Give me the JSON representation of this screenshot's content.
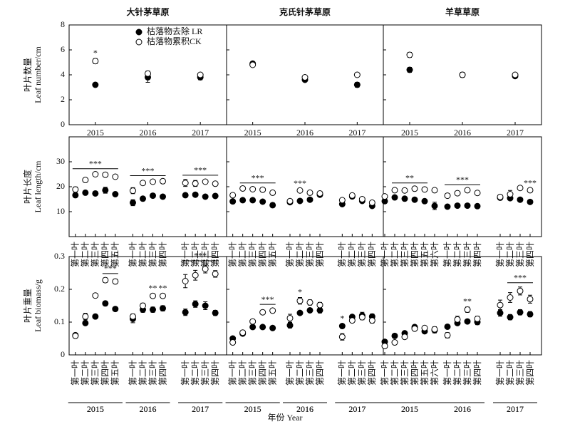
{
  "figure": {
    "xlabel": "年份 Year"
  },
  "chart_data": [
    {
      "type": "scatter",
      "title": "大针茅草原",
      "ylabel": [
        "叶片数量",
        "Leaf number/cm"
      ],
      "categories": [
        "2015",
        "2016",
        "2017"
      ],
      "ylim": [
        0,
        8
      ],
      "yticks": [
        0,
        2,
        4,
        6,
        8
      ],
      "series": [
        {
          "name": "枯落物去除 LR",
          "fill": "#000",
          "values": [
            3.2,
            3.8,
            3.8
          ],
          "errors": [
            0.1,
            0.4,
            0.2
          ]
        },
        {
          "name": "枯落物累积CK",
          "fill": "#fff",
          "values": [
            5.1,
            4.1,
            4.0
          ],
          "errors": [
            0.2,
            0.2,
            0.1
          ]
        }
      ],
      "annotations": [
        {
          "text": "*",
          "span": [
            0,
            0
          ]
        }
      ]
    },
    {
      "type": "scatter",
      "title": "克氏针茅草原",
      "categories": [
        "2015",
        "2016",
        "2017"
      ],
      "ylim": [
        0,
        8
      ],
      "yticks": [
        0,
        2,
        4,
        6,
        8
      ],
      "series": [
        {
          "fill": "#000",
          "values": [
            4.9,
            3.6,
            3.2
          ],
          "errors": [
            0.1,
            0.1,
            0.2
          ]
        },
        {
          "fill": "#fff",
          "values": [
            4.8,
            3.8,
            4.0
          ],
          "errors": [
            0.1,
            0.1,
            0.1
          ]
        }
      ],
      "annotations": []
    },
    {
      "type": "scatter",
      "title": "羊草草原",
      "categories": [
        "2015",
        "2016",
        "2017"
      ],
      "ylim": [
        0,
        8
      ],
      "yticks": [
        0,
        2,
        4,
        6,
        8
      ],
      "series": [
        {
          "fill": "#000",
          "values": [
            4.4,
            4.0,
            3.9
          ],
          "errors": [
            0.2,
            0.2,
            0.1
          ]
        },
        {
          "fill": "#fff",
          "values": [
            5.6,
            4.0,
            4.0
          ],
          "errors": [
            0.2,
            0.1,
            0.1
          ]
        }
      ],
      "annotations": []
    },
    {
      "type": "scatter",
      "ylabel": [
        "叶片长度",
        "Leaf length/cm"
      ],
      "ylim": [
        0,
        40
      ],
      "yticks": [
        10,
        20,
        30
      ],
      "groups": [
        {
          "label": "2015",
          "categories": [
            "第一叶",
            "第二叶",
            "第三叶",
            "第四叶",
            "第五叶"
          ]
        },
        {
          "label": "2016",
          "categories": [
            "第一叶",
            "第二叶",
            "第三叶",
            "第四叶"
          ]
        },
        {
          "label": "2017",
          "categories": [
            "第一叶",
            "第二叶",
            "第三叶",
            "第四叶"
          ]
        }
      ],
      "series": [
        {
          "fill": "#000",
          "values": [
            16.6,
            17.6,
            17.3,
            18.6,
            17.0,
            13.6,
            15.2,
            16.4,
            16.0,
            16.6,
            16.8,
            16.0,
            16.3
          ],
          "errors": [
            0.8,
            0.6,
            0.6,
            1.2,
            0.5,
            1.2,
            0.8,
            0.8,
            0.6,
            0.6,
            0.6,
            0.8,
            0.8
          ]
        },
        {
          "fill": "#fff",
          "values": [
            18.9,
            22.7,
            25.0,
            24.8,
            24.0,
            18.4,
            21.5,
            22.0,
            22.2,
            21.5,
            21.3,
            22.0,
            21.2
          ],
          "errors": [
            1.0,
            0.5,
            0.5,
            0.5,
            0.6,
            1.2,
            0.6,
            0.5,
            0.5,
            1.4,
            1.2,
            0.6,
            0.6
          ]
        }
      ],
      "annotations": [
        {
          "text": "***",
          "span": [
            0,
            4
          ]
        },
        {
          "text": "***",
          "span": [
            5,
            8
          ]
        },
        {
          "text": "***",
          "span": [
            9,
            12
          ]
        }
      ]
    },
    {
      "type": "scatter",
      "ylim": [
        0,
        40
      ],
      "yticks": [
        10,
        20,
        30
      ],
      "groups": [
        {
          "label": "2015",
          "categories": [
            "第一叶",
            "第二叶",
            "第三叶",
            "第四叶",
            "第五叶"
          ]
        },
        {
          "label": "2016",
          "categories": [
            "第一叶",
            "第二叶",
            "第三叶",
            "第四叶"
          ]
        },
        {
          "label": "2017",
          "categories": [
            "第一叶",
            "第二叶",
            "第三叶",
            "第四叶"
          ]
        }
      ],
      "series": [
        {
          "fill": "#000",
          "values": [
            14.1,
            14.6,
            14.6,
            14.0,
            12.6,
            13.8,
            14.3,
            14.8,
            16.8,
            13.0,
            16.1,
            14.3,
            12.3
          ],
          "errors": [
            0.6,
            0.5,
            0.5,
            0.6,
            0.9,
            0.8,
            0.5,
            0.5,
            0.6,
            0.6,
            0.5,
            0.6,
            0.6
          ]
        },
        {
          "fill": "#fff",
          "values": [
            16.6,
            19.3,
            19.0,
            18.8,
            17.6,
            14.2,
            18.5,
            17.6,
            17.3,
            14.6,
            16.5,
            15.0,
            13.6
          ],
          "errors": [
            0.8,
            0.5,
            0.6,
            0.5,
            0.6,
            0.8,
            0.6,
            0.5,
            0.5,
            0.6,
            0.5,
            0.6,
            0.6
          ]
        }
      ],
      "annotations": [
        {
          "text": "***",
          "span": [
            1,
            4
          ]
        },
        {
          "text": "***",
          "span": [
            6,
            6
          ]
        }
      ]
    },
    {
      "type": "scatter",
      "ylim": [
        0,
        40
      ],
      "yticks": [
        10,
        20,
        30
      ],
      "groups": [
        {
          "label": "2015",
          "categories": [
            "第一叶",
            "第二叶",
            "第三叶",
            "第四叶",
            "第五叶",
            "第六叶"
          ]
        },
        {
          "label": "2016",
          "categories": [
            "第一叶",
            "第二叶",
            "第三叶",
            "第四叶"
          ]
        },
        {
          "label": "2017",
          "categories": [
            "第一叶",
            "第二叶",
            "第三叶",
            "第四叶"
          ]
        }
      ],
      "series": [
        {
          "fill": "#000",
          "values": [
            14.2,
            15.7,
            15.2,
            14.8,
            14.2,
            12.3,
            12.0,
            12.4,
            12.4,
            12.2,
            15.6,
            15.4,
            14.8,
            13.9
          ],
          "errors": [
            0.8,
            0.5,
            0.8,
            0.6,
            0.6,
            1.5,
            0.5,
            0.5,
            0.5,
            0.5,
            0.8,
            0.8,
            0.6,
            0.6
          ]
        },
        {
          "fill": "#fff",
          "values": [
            16.1,
            18.6,
            18.5,
            19.2,
            18.9,
            18.6,
            16.4,
            17.4,
            18.6,
            17.5,
            15.9,
            17.0,
            19.5,
            18.6
          ],
          "errors": [
            0.6,
            0.5,
            0.5,
            0.6,
            0.6,
            0.5,
            0.5,
            0.6,
            0.5,
            0.5,
            0.8,
            1.5,
            0.6,
            0.6
          ]
        }
      ],
      "annotations": [
        {
          "text": "**",
          "span": [
            1,
            4
          ]
        },
        {
          "text": "***",
          "span": [
            6,
            9
          ]
        },
        {
          "text": "***",
          "span": [
            13,
            13
          ]
        }
      ]
    },
    {
      "type": "scatter",
      "ylabel": [
        "叶片重量",
        "Leaf biomass/g"
      ],
      "ylim": [
        0,
        0.3
      ],
      "yticks": [
        0,
        0.1,
        0.2,
        0.3
      ],
      "groups": [
        {
          "label": "2015",
          "categories": [
            "第一叶",
            "第二叶",
            "第三叶",
            "第四叶",
            "第五叶"
          ]
        },
        {
          "label": "2016",
          "categories": [
            "第一叶",
            "第二叶",
            "第三叶",
            "第四叶"
          ]
        },
        {
          "label": "2017",
          "categories": [
            "第一叶",
            "第二叶",
            "第三叶",
            "第四叶"
          ]
        }
      ],
      "series": [
        {
          "fill": "#000",
          "values": [
            0.06,
            0.097,
            0.117,
            0.157,
            0.14,
            0.11,
            0.138,
            0.138,
            0.142,
            0.13,
            0.155,
            0.15,
            0.128
          ],
          "errors": [
            0.005,
            0.006,
            0.006,
            0.007,
            0.004,
            0.012,
            0.008,
            0.008,
            0.008,
            0.01,
            0.01,
            0.012,
            0.008
          ]
        },
        {
          "fill": "#fff",
          "values": [
            0.058,
            0.117,
            0.181,
            0.228,
            0.224,
            0.117,
            0.15,
            0.18,
            0.18,
            0.225,
            0.243,
            0.262,
            0.247
          ],
          "errors": [
            0.006,
            0.01,
            0.006,
            0.007,
            0.007,
            0.008,
            0.008,
            0.006,
            0.006,
            0.02,
            0.015,
            0.012,
            0.01
          ]
        }
      ],
      "annotations": [
        {
          "text": "***",
          "span": [
            3,
            4
          ]
        },
        {
          "text": "**",
          "span": [
            7,
            7
          ]
        },
        {
          "text": "**",
          "span": [
            8,
            8
          ]
        },
        {
          "text": "***",
          "span": [
            9,
            12
          ]
        }
      ]
    },
    {
      "type": "scatter",
      "ylim": [
        0,
        0.3
      ],
      "yticks": [
        0,
        0.1,
        0.2,
        0.3
      ],
      "groups": [
        {
          "label": "2015",
          "categories": [
            "第一叶",
            "第二叶",
            "第三叶",
            "第四叶",
            "第五叶"
          ]
        },
        {
          "label": "2016",
          "categories": [
            "第一叶",
            "第二叶",
            "第三叶",
            "第四叶"
          ]
        },
        {
          "label": "2017",
          "categories": [
            "第一叶",
            "第二叶",
            "第三叶",
            "第四叶"
          ]
        }
      ],
      "series": [
        {
          "fill": "#000",
          "values": [
            0.05,
            0.065,
            0.085,
            0.085,
            0.082,
            0.09,
            0.128,
            0.136,
            0.136,
            0.088,
            0.116,
            0.12,
            0.117
          ],
          "errors": [
            0.004,
            0.005,
            0.006,
            0.005,
            0.006,
            0.008,
            0.006,
            0.006,
            0.008,
            0.006,
            0.006,
            0.01,
            0.008
          ]
        },
        {
          "fill": "#fff",
          "values": [
            0.038,
            0.068,
            0.102,
            0.13,
            0.135,
            0.112,
            0.165,
            0.16,
            0.152,
            0.055,
            0.105,
            0.115,
            0.105
          ],
          "errors": [
            0.004,
            0.005,
            0.006,
            0.005,
            0.006,
            0.012,
            0.01,
            0.008,
            0.008,
            0.01,
            0.006,
            0.008,
            0.008
          ]
        }
      ],
      "annotations": [
        {
          "text": "***",
          "span": [
            3,
            4
          ]
        },
        {
          "text": "*",
          "span": [
            6,
            6
          ]
        },
        {
          "text": "*",
          "span": [
            9,
            9
          ]
        }
      ]
    },
    {
      "type": "scatter",
      "ylim": [
        0,
        0.3
      ],
      "yticks": [
        0,
        0.1,
        0.2,
        0.3
      ],
      "groups": [
        {
          "label": "2015",
          "categories": [
            "第一叶",
            "第二叶",
            "第三叶",
            "第四叶",
            "第五叶",
            "第六叶"
          ]
        },
        {
          "label": "2016",
          "categories": [
            "第一叶",
            "第二叶",
            "第三叶",
            "第四叶"
          ]
        },
        {
          "label": "2017",
          "categories": [
            "第一叶",
            "第二叶",
            "第三叶",
            "第四叶"
          ]
        }
      ],
      "series": [
        {
          "fill": "#000",
          "values": [
            0.04,
            0.058,
            0.066,
            0.085,
            0.072,
            0.075,
            0.086,
            0.097,
            0.102,
            0.1,
            0.128,
            0.115,
            0.13,
            0.124
          ],
          "errors": [
            0.004,
            0.004,
            0.005,
            0.006,
            0.006,
            0.008,
            0.004,
            0.006,
            0.006,
            0.008,
            0.01,
            0.008,
            0.008,
            0.008
          ]
        },
        {
          "fill": "#fff",
          "values": [
            0.027,
            0.038,
            0.055,
            0.08,
            0.082,
            0.078,
            0.06,
            0.108,
            0.138,
            0.11,
            0.152,
            0.175,
            0.195,
            0.17
          ],
          "errors": [
            0.004,
            0.004,
            0.006,
            0.006,
            0.006,
            0.008,
            0.008,
            0.01,
            0.008,
            0.008,
            0.015,
            0.015,
            0.012,
            0.012
          ]
        }
      ],
      "annotations": [
        {
          "text": "**",
          "span": [
            8,
            8
          ]
        },
        {
          "text": "***",
          "span": [
            11,
            13
          ]
        }
      ]
    }
  ]
}
